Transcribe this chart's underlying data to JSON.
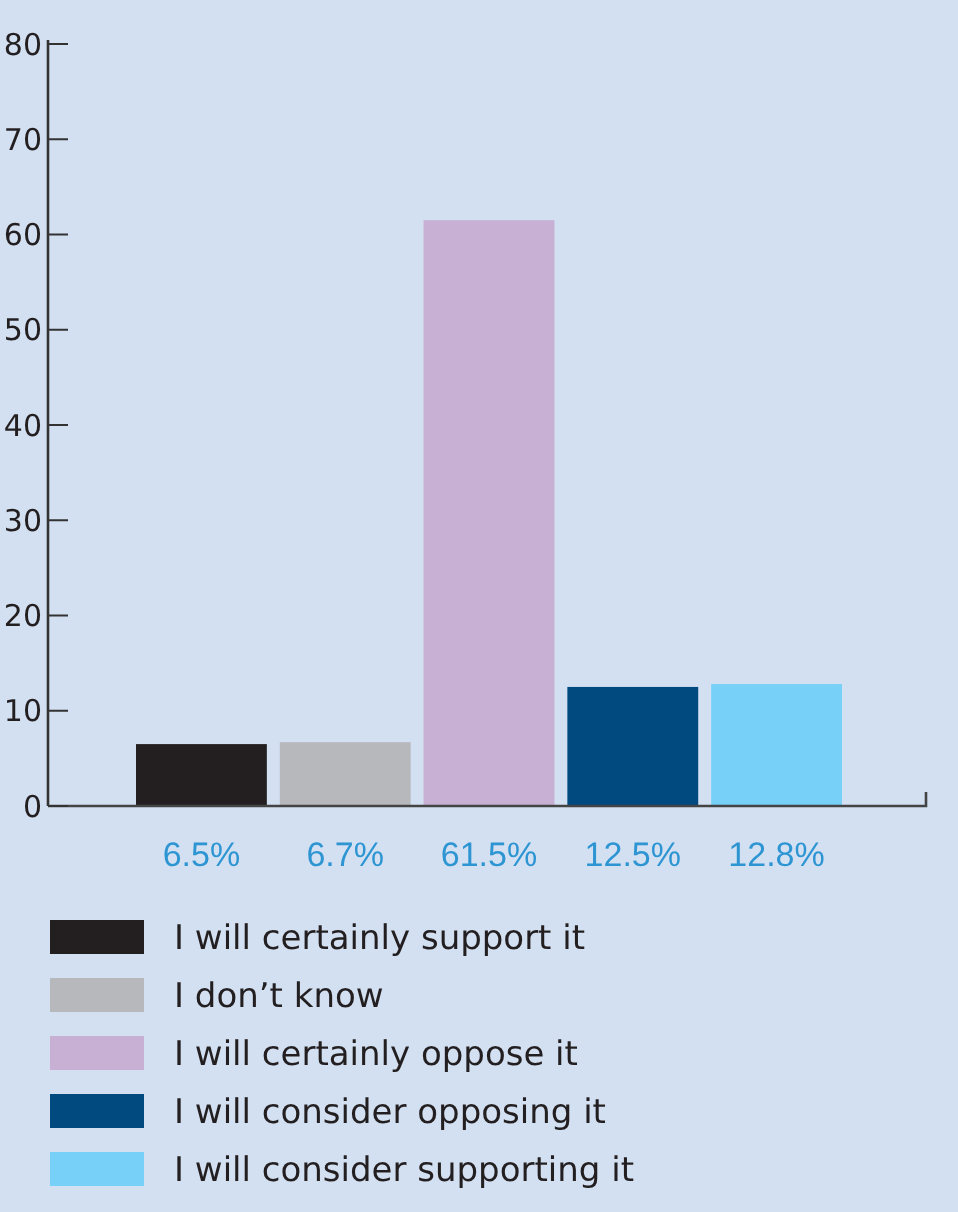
{
  "chart_data": {
    "type": "bar",
    "categories": [
      "6.5%",
      "6.7%",
      "61.5%",
      "12.5%",
      "12.8%"
    ],
    "series": [
      {
        "name": "I will certainly support it",
        "color": "#231f20",
        "values": [
          6.5,
          null,
          null,
          null,
          null
        ]
      },
      {
        "name": "I don’t know",
        "color": "#b7b8bc",
        "values": [
          null,
          6.7,
          null,
          null,
          null
        ]
      },
      {
        "name": "I will certainly oppose it",
        "color": "#c7b0d3",
        "values": [
          null,
          null,
          61.5,
          null,
          null
        ]
      },
      {
        "name": "I will consider opposing it",
        "color": "#004a80",
        "values": [
          null,
          null,
          null,
          12.5,
          null
        ]
      },
      {
        "name": "I will consider supporting it",
        "color": "#77d0f7",
        "values": [
          null,
          null,
          null,
          null,
          12.8
        ]
      }
    ],
    "ylim": [
      0,
      80
    ],
    "yticks": [
      0,
      10,
      20,
      30,
      40,
      50,
      60,
      70,
      80
    ],
    "legend": "bottom"
  }
}
